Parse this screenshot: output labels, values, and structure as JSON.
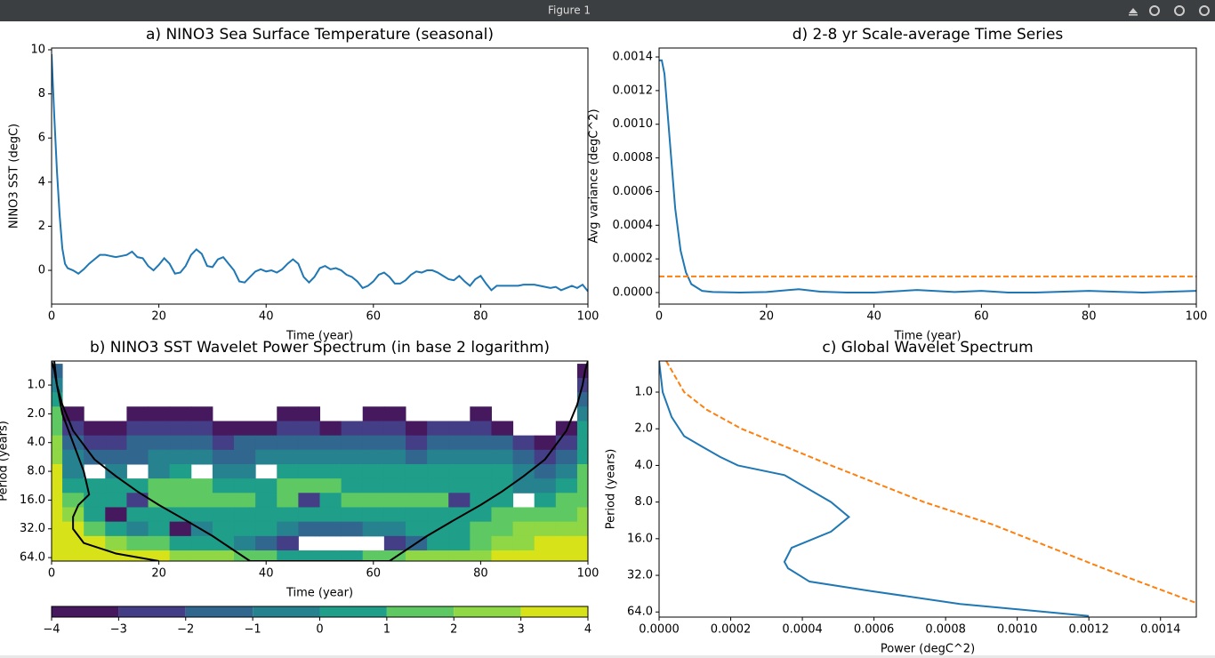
{
  "window": {
    "title": "Figure 1"
  },
  "chart_data": [
    {
      "type": "line",
      "title": "a) NINO3 Sea Surface Temperature (seasonal)",
      "xlabel": "Time (year)",
      "ylabel": "NINO3 SST (degC)",
      "xlim": [
        0,
        100
      ],
      "ylim": [
        -1.53,
        10.08
      ],
      "xticks": [
        0,
        20,
        40,
        60,
        80,
        100
      ],
      "yticks": [
        0,
        2,
        4,
        6,
        8,
        10
      ],
      "series": [
        {
          "color": "#1f77b4",
          "x": [
            0,
            0.5,
            1,
            1.5,
            2,
            2.5,
            3,
            4,
            5,
            6,
            7,
            8,
            9,
            10,
            11,
            12,
            13,
            14,
            15,
            16,
            17,
            18,
            19,
            20,
            21,
            22,
            23,
            24,
            25,
            26,
            27,
            28,
            29,
            30,
            31,
            32,
            33,
            34,
            35,
            36,
            37,
            38,
            39,
            40,
            41,
            42,
            43,
            44,
            45,
            46,
            47,
            48,
            49,
            50,
            51,
            52,
            53,
            54,
            55,
            56,
            57,
            58,
            59,
            60,
            61,
            62,
            63,
            64,
            65,
            66,
            67,
            68,
            69,
            70,
            71,
            72,
            73,
            74,
            75,
            76,
            77,
            78,
            79,
            80,
            81,
            82,
            83,
            84,
            85,
            86,
            87,
            88,
            89,
            90,
            91,
            92,
            93,
            94,
            95,
            96,
            97,
            98,
            99,
            100
          ],
          "values": [
            9.8,
            7,
            4.5,
            2.5,
            1,
            0.3,
            0.1,
            0,
            -0.15,
            0.05,
            0.3,
            0.5,
            0.7,
            0.7,
            0.65,
            0.6,
            0.65,
            0.7,
            0.85,
            0.6,
            0.55,
            0.2,
            0,
            0.25,
            0.55,
            0.3,
            -0.15,
            -0.1,
            0.2,
            0.7,
            0.95,
            0.75,
            0.2,
            0.15,
            0.5,
            0.6,
            0.3,
            0,
            -0.5,
            -0.55,
            -0.3,
            -0.05,
            0.05,
            -0.05,
            0,
            -0.1,
            0.05,
            0.3,
            0.5,
            0.3,
            -0.3,
            -0.55,
            -0.3,
            0.1,
            0.2,
            0.05,
            0.1,
            0,
            -0.2,
            -0.3,
            -0.5,
            -0.8,
            -0.7,
            -0.5,
            -0.2,
            -0.1,
            -0.3,
            -0.6,
            -0.6,
            -0.45,
            -0.2,
            -0.05,
            -0.1,
            0,
            0,
            -0.1,
            -0.25,
            -0.4,
            -0.45,
            -0.25,
            -0.5,
            -0.7,
            -0.4,
            -0.25,
            -0.6,
            -0.9,
            -0.7,
            -0.7,
            -0.7,
            -0.7,
            -0.7,
            -0.65,
            -0.65,
            -0.65,
            -0.7,
            -0.75,
            -0.8,
            -0.75,
            -0.9,
            -0.8,
            -0.7,
            -0.8,
            -0.65,
            -0.95
          ]
        }
      ]
    },
    {
      "type": "line",
      "title": "d) 2-8 yr Scale-average Time Series",
      "xlabel": "Time (year)",
      "ylabel": "Avg variance (degC^2)",
      "xlim": [
        0,
        100
      ],
      "ylim": [
        -6.87e-05,
        0.001453
      ],
      "xticks": [
        0,
        20,
        40,
        60,
        80,
        100
      ],
      "yticks": [
        {
          "value": 0,
          "label": "0.0000"
        },
        {
          "value": 0.0002,
          "label": "0.0002"
        },
        {
          "value": 0.0004,
          "label": "0.0004"
        },
        {
          "value": 0.0006,
          "label": "0.0006"
        },
        {
          "value": 0.0008,
          "label": "0.0008"
        },
        {
          "value": 0.001,
          "label": "0.0010"
        },
        {
          "value": 0.0012,
          "label": "0.0012"
        },
        {
          "value": 0.0014,
          "label": "0.0014"
        }
      ],
      "series": [
        {
          "color": "#1f77b4",
          "x": [
            0,
            0.5,
            1,
            2,
            3,
            4,
            5,
            6,
            8,
            10,
            15,
            20,
            26,
            30,
            35,
            40,
            48,
            55,
            60,
            65,
            70,
            80,
            90,
            100
          ],
          "values": [
            0.00138,
            0.00138,
            0.0013,
            0.0009,
            0.0005,
            0.00025,
            0.00012,
            5e-05,
            1e-05,
            3e-06,
            0,
            3e-06,
            2e-05,
            5e-06,
            0,
            0,
            1.5e-05,
            3e-06,
            1e-05,
            0,
            0,
            1e-05,
            0,
            1e-05
          ]
        },
        {
          "color": "#ff7f0e",
          "linestyle": "dashed",
          "x": [
            0,
            100
          ],
          "values": [
            9.55e-05,
            9.55e-05
          ]
        }
      ]
    },
    {
      "type": "contour",
      "title": "b) NINO3 SST Wavelet Power Spectrum (in base 2 logarithm)",
      "xlabel": "Time (year)",
      "ylabel": "Period (years)",
      "xlim": [
        0,
        100
      ],
      "ylim": [
        0.56,
        69.6
      ],
      "yscale": "log2",
      "yinvert": true,
      "xticks": [
        0,
        20,
        40,
        60,
        80,
        100
      ],
      "yticks": [
        {
          "value": 1,
          "label": "1.0"
        },
        {
          "value": 2,
          "label": "2.0"
        },
        {
          "value": 4,
          "label": "4.0"
        },
        {
          "value": 8,
          "label": "8.0"
        },
        {
          "value": 16,
          "label": "16.0"
        },
        {
          "value": 32,
          "label": "32.0"
        },
        {
          "value": 64,
          "label": "64.0"
        }
      ],
      "levels": [
        {
          "value": -4,
          "label": "−4"
        },
        {
          "value": -3,
          "label": "−3"
        },
        {
          "value": -2,
          "label": "−2"
        },
        {
          "value": -1,
          "label": "−1"
        },
        0,
        1,
        2,
        3,
        4
      ],
      "colors": [
        "#46185e",
        "#433e85",
        "#31678e",
        "#26828e",
        "#1f9e89",
        "#5ec962",
        "#8fd744",
        "#d8e219"
      ],
      "x": [
        0,
        4,
        8,
        12,
        16,
        20,
        24,
        28,
        32,
        36,
        40,
        44,
        48,
        52,
        56,
        60,
        64,
        68,
        72,
        76,
        80,
        84,
        88,
        92,
        96,
        100
      ],
      "y": [
        0.71,
        1,
        1.41,
        2,
        2.83,
        4,
        5.66,
        8,
        11.3,
        16,
        22.6,
        32,
        45.3,
        64
      ],
      "z": [
        [
          -2,
          -5,
          -5,
          -5,
          -5,
          -5,
          -5,
          -5,
          -5,
          -5,
          -5,
          -5,
          -5,
          -5,
          -5,
          -5,
          -5,
          -5,
          -5,
          -5,
          -5,
          -5,
          -5,
          -5,
          -5,
          -4
        ],
        [
          -1,
          -5,
          -5,
          -5,
          -5,
          -5,
          -5,
          -5,
          -5,
          -5,
          -5,
          -5,
          -5,
          -5,
          -5,
          -5,
          -5,
          -5,
          -5,
          -5,
          -5,
          -5,
          -5,
          -5,
          -5,
          -3
        ],
        [
          0,
          -5,
          -5,
          -5,
          -5,
          -5,
          -5,
          -5,
          -5,
          -5,
          -5,
          -5,
          -5,
          -5,
          -5,
          -5,
          -5,
          -5,
          -5,
          -5,
          -5,
          -5,
          -5,
          -5,
          -5,
          -2
        ],
        [
          1,
          -3.5,
          -5,
          -5,
          -3.5,
          -3.5,
          -3.5,
          -3.5,
          -5,
          -5,
          -5,
          -3.5,
          -3.5,
          -5,
          -5,
          -3.5,
          -3.5,
          -5,
          -5,
          -5,
          -3.5,
          -5,
          -5,
          -5,
          -5,
          -1
        ],
        [
          1.5,
          -3,
          -3.5,
          -3.5,
          -3,
          -3,
          -2.5,
          -2.5,
          -3.5,
          -3.5,
          -3.5,
          -3,
          -3,
          -3.5,
          -3,
          -3,
          -3,
          -3.5,
          -3,
          -3,
          -3,
          -3.5,
          -4.5,
          -4.5,
          -3.5,
          0
        ],
        [
          2,
          -2,
          -2.5,
          -2.5,
          -2,
          -2,
          -1.5,
          -1.5,
          -2.5,
          -2,
          -2,
          -1.5,
          -1.5,
          -2,
          -2,
          -2,
          -2,
          -2.5,
          -2,
          -2,
          -1.5,
          -2,
          -3,
          -3.5,
          -2.5,
          0.5
        ],
        [
          2.5,
          -1,
          -1.5,
          -1.5,
          -1.5,
          -1,
          -0.5,
          -1,
          -1.5,
          -1.5,
          -1,
          -0.5,
          -1,
          -1,
          -1,
          -1,
          -1,
          -1.5,
          -1,
          -1,
          -0.5,
          -0.5,
          -2,
          -2.5,
          -1.5,
          0.5
        ],
        [
          3,
          -0.5,
          -5,
          -0.5,
          -5,
          -0.5,
          0.5,
          -5,
          -0.5,
          -0.5,
          -5,
          0,
          0.5,
          0.5,
          0,
          0.5,
          0.5,
          0,
          0,
          0,
          0.5,
          0.5,
          -1,
          -2,
          -0.5,
          1
        ],
        [
          3,
          0.5,
          0.5,
          0.5,
          0.5,
          1,
          1,
          1,
          0.5,
          0.5,
          0.5,
          1,
          1,
          1,
          0.5,
          0.5,
          0.5,
          0.5,
          0.5,
          0.5,
          0.5,
          0.5,
          -0.5,
          -1,
          0.5,
          1
        ],
        [
          3.5,
          1.5,
          0.5,
          0.5,
          -2.5,
          1,
          1,
          1.5,
          1.5,
          1,
          0.5,
          1,
          -3,
          0.5,
          1.5,
          1.5,
          1.5,
          1,
          1,
          -2.5,
          0.5,
          0.5,
          -5,
          0.5,
          1,
          1.5
        ],
        [
          3.5,
          2,
          0.5,
          -3.5,
          0.5,
          0.5,
          0.5,
          0.5,
          0.5,
          0.5,
          0.5,
          0.5,
          0,
          0,
          0.5,
          0.5,
          0.5,
          0.5,
          0.5,
          0.5,
          0.5,
          1,
          1.5,
          1.5,
          1.5,
          2
        ],
        [
          3.5,
          3,
          1.5,
          0.5,
          -0.5,
          0,
          -3.5,
          -0.5,
          0,
          0,
          0,
          -1,
          -1.5,
          -1.5,
          -1.5,
          -1,
          -0.5,
          0,
          0,
          0.5,
          1,
          1.5,
          2,
          2.5,
          2.5,
          2.5
        ],
        [
          3.5,
          3.5,
          3,
          2,
          1.5,
          1,
          0.5,
          0.5,
          0,
          -1,
          -2,
          -3,
          -5,
          -5,
          -5,
          -5,
          -3,
          -2,
          0,
          0.5,
          1,
          2,
          2.5,
          3.5,
          3.5,
          3.5
        ],
        [
          3.5,
          3.5,
          3.5,
          3.5,
          3,
          3,
          2.5,
          2,
          2,
          1.5,
          1,
          0.5,
          0,
          0,
          0.5,
          1,
          1.5,
          2,
          2,
          2.5,
          2.5,
          3,
          3.5,
          3.5,
          3.5,
          3.5
        ]
      ],
      "lines": [
        {
          "color": "#000000",
          "x": [
            0,
            0.5,
            1,
            2,
            4,
            8,
            12,
            16,
            20,
            25,
            30,
            37,
            63,
            70,
            75,
            80,
            84,
            88,
            92,
            96,
            98,
            99,
            99.5,
            100
          ],
          "y": [
            0.56,
            0.7,
            1,
            1.6,
            3,
            6,
            9,
            13,
            18,
            26,
            38,
            69.6,
            69.6,
            38,
            26,
            18,
            13,
            9,
            6,
            3,
            1.6,
            1,
            0.7,
            0.56
          ]
        },
        {
          "color": "#000000",
          "x": [
            0.5,
            1,
            2,
            4,
            6,
            7,
            5,
            4,
            4,
            6,
            12,
            20
          ],
          "y": [
            0.56,
            1,
            2,
            4,
            8,
            14,
            18,
            24,
            32,
            45,
            58,
            69.6
          ]
        }
      ]
    },
    {
      "type": "line",
      "orientation": "horizontal",
      "title": "c) Global Wavelet Spectrum",
      "xlabel": "Power (degC^2)",
      "ylabel": "Period (years)",
      "xlim": [
        0,
        0.0015
      ],
      "ylim": [
        0.555,
        70.5
      ],
      "yscale": "log2",
      "yinvert": true,
      "xticks": [
        {
          "value": 0,
          "label": "0.0000"
        },
        {
          "value": 0.0002,
          "label": "0.0002"
        },
        {
          "value": 0.0004,
          "label": "0.0004"
        },
        {
          "value": 0.0006,
          "label": "0.0006"
        },
        {
          "value": 0.0008,
          "label": "0.0008"
        },
        {
          "value": 0.001,
          "label": "0.0010"
        },
        {
          "value": 0.0012,
          "label": "0.0012"
        },
        {
          "value": 0.0014,
          "label": "0.0014"
        }
      ],
      "yticks": [
        {
          "value": 1,
          "label": "1.0"
        },
        {
          "value": 2,
          "label": "2.0"
        },
        {
          "value": 4,
          "label": "4.0"
        },
        {
          "value": 8,
          "label": "8.0"
        },
        {
          "value": 16,
          "label": "16.0"
        },
        {
          "value": 32,
          "label": "32.0"
        },
        {
          "value": 64,
          "label": "64.0"
        }
      ],
      "series": [
        {
          "color": "#1f77b4",
          "y": [
            0.555,
            1,
            1.6,
            2.3,
            2.8,
            3.4,
            4,
            4.8,
            8,
            10.6,
            14,
            19,
            24.8,
            28,
            36,
            43,
            55,
            69
          ],
          "values": [
            0,
            1e-05,
            3.5e-05,
            7e-05,
            0.00012,
            0.00017,
            0.00022,
            0.00035,
            0.00048,
            0.00053,
            0.00048,
            0.00037,
            0.00035,
            0.00036,
            0.00042,
            0.00059,
            0.00084,
            0.0012
          ]
        },
        {
          "color": "#ff7f0e",
          "linestyle": "dashed",
          "y": [
            0.555,
            1,
            1.4,
            2,
            3.2,
            4,
            8,
            12.2,
            28,
            54
          ],
          "values": [
            2e-05,
            7e-05,
            0.000134,
            0.00023,
            0.0004,
            0.00048,
            0.00074,
            0.00093,
            0.00124,
            0.0015
          ]
        }
      ]
    }
  ]
}
